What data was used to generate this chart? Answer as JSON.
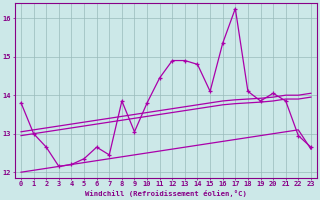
{
  "xlabel": "Windchill (Refroidissement éolien,°C)",
  "bg_color": "#cce8e8",
  "line_color": "#aa00aa",
  "grid_color": "#99bbbb",
  "axis_color": "#880088",
  "xlim": [
    -0.5,
    23.5
  ],
  "ylim": [
    11.85,
    16.4
  ],
  "yticks": [
    12,
    13,
    14,
    15,
    16
  ],
  "xticks": [
    0,
    1,
    2,
    3,
    4,
    5,
    6,
    7,
    8,
    9,
    10,
    11,
    12,
    13,
    14,
    15,
    16,
    17,
    18,
    19,
    20,
    21,
    22,
    23
  ],
  "line1_x": [
    0,
    1,
    2,
    3,
    4,
    5,
    6,
    7,
    8,
    9,
    10,
    11,
    12,
    13,
    14,
    15,
    16,
    17,
    18,
    19,
    20,
    21,
    22,
    23
  ],
  "line1_y": [
    13.8,
    13.0,
    12.65,
    12.15,
    12.2,
    12.35,
    12.65,
    12.45,
    13.85,
    13.05,
    13.8,
    14.45,
    14.9,
    14.9,
    14.8,
    14.1,
    15.35,
    16.25,
    14.1,
    13.85,
    14.05,
    13.85,
    12.95,
    12.65
  ],
  "line2_x": [
    0,
    1,
    2,
    3,
    4,
    5,
    6,
    7,
    8,
    9,
    10,
    11,
    12,
    13,
    14,
    15,
    16,
    17,
    18,
    19,
    20,
    21,
    22,
    23
  ],
  "line2_y": [
    13.05,
    13.1,
    13.15,
    13.2,
    13.25,
    13.3,
    13.35,
    13.4,
    13.45,
    13.5,
    13.55,
    13.6,
    13.65,
    13.7,
    13.75,
    13.8,
    13.85,
    13.88,
    13.9,
    13.92,
    13.95,
    14.0,
    14.0,
    14.05
  ],
  "line3_x": [
    0,
    1,
    2,
    3,
    4,
    5,
    6,
    7,
    8,
    9,
    10,
    11,
    12,
    13,
    14,
    15,
    16,
    17,
    18,
    19,
    20,
    21,
    22,
    23
  ],
  "line3_y": [
    12.95,
    13.0,
    13.05,
    13.1,
    13.15,
    13.2,
    13.25,
    13.3,
    13.35,
    13.4,
    13.45,
    13.5,
    13.55,
    13.6,
    13.65,
    13.7,
    13.75,
    13.78,
    13.8,
    13.82,
    13.85,
    13.9,
    13.9,
    13.95
  ],
  "line4_x": [
    0,
    1,
    2,
    3,
    4,
    5,
    6,
    7,
    8,
    9,
    10,
    11,
    12,
    13,
    14,
    15,
    16,
    17,
    18,
    19,
    20,
    21,
    22,
    23
  ],
  "line4_y": [
    12.0,
    12.05,
    12.1,
    12.15,
    12.2,
    12.25,
    12.3,
    12.35,
    12.4,
    12.45,
    12.5,
    12.55,
    12.6,
    12.65,
    12.7,
    12.75,
    12.8,
    12.85,
    12.9,
    12.95,
    13.0,
    13.05,
    13.1,
    12.6
  ]
}
